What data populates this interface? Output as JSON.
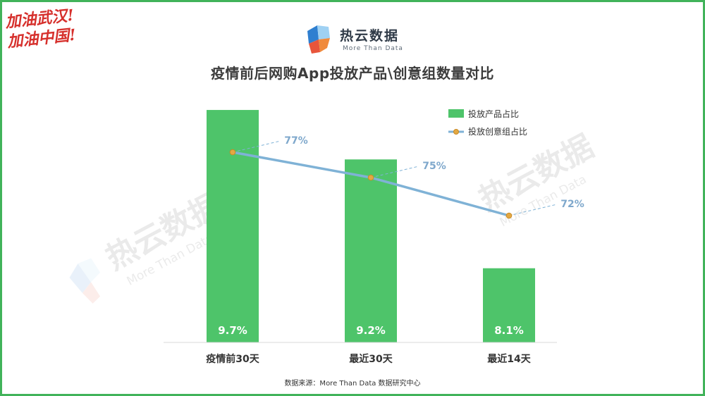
{
  "slogan": [
    "加油武汉!",
    "加油中国!"
  ],
  "brand": {
    "name": "热云数据",
    "tagline": "More Than Data"
  },
  "watermark": {
    "name": "热云数据",
    "tagline": "More Than Data"
  },
  "source": "数据来源：More Than Data 数据研究中心",
  "colors": {
    "bar": "#4ec46a",
    "line": "#7fb2d6",
    "marker": "#e3a843",
    "axis": "#d9d9d9",
    "frame": "#41b35a"
  },
  "chart_data": {
    "type": "bar",
    "title": "疫情前后网购App投放产品\\创意组数量对比",
    "categories": [
      "疫情前30天",
      "最近30天",
      "最近14天"
    ],
    "series": [
      {
        "name": "投放产品占比",
        "type": "bar",
        "values": [
          9.7,
          9.2,
          8.1
        ],
        "labels": [
          "9.7%",
          "9.2%",
          "8.1%"
        ]
      },
      {
        "name": "投放创意组占比",
        "type": "line",
        "values": [
          77,
          75,
          72
        ],
        "labels": [
          "77%",
          "75%",
          "72%"
        ]
      }
    ],
    "legend_position": "top-right",
    "grid": false,
    "bar_ylim": [
      7.35,
      9.85
    ],
    "line_ylim": [
      62,
      81.5
    ]
  }
}
